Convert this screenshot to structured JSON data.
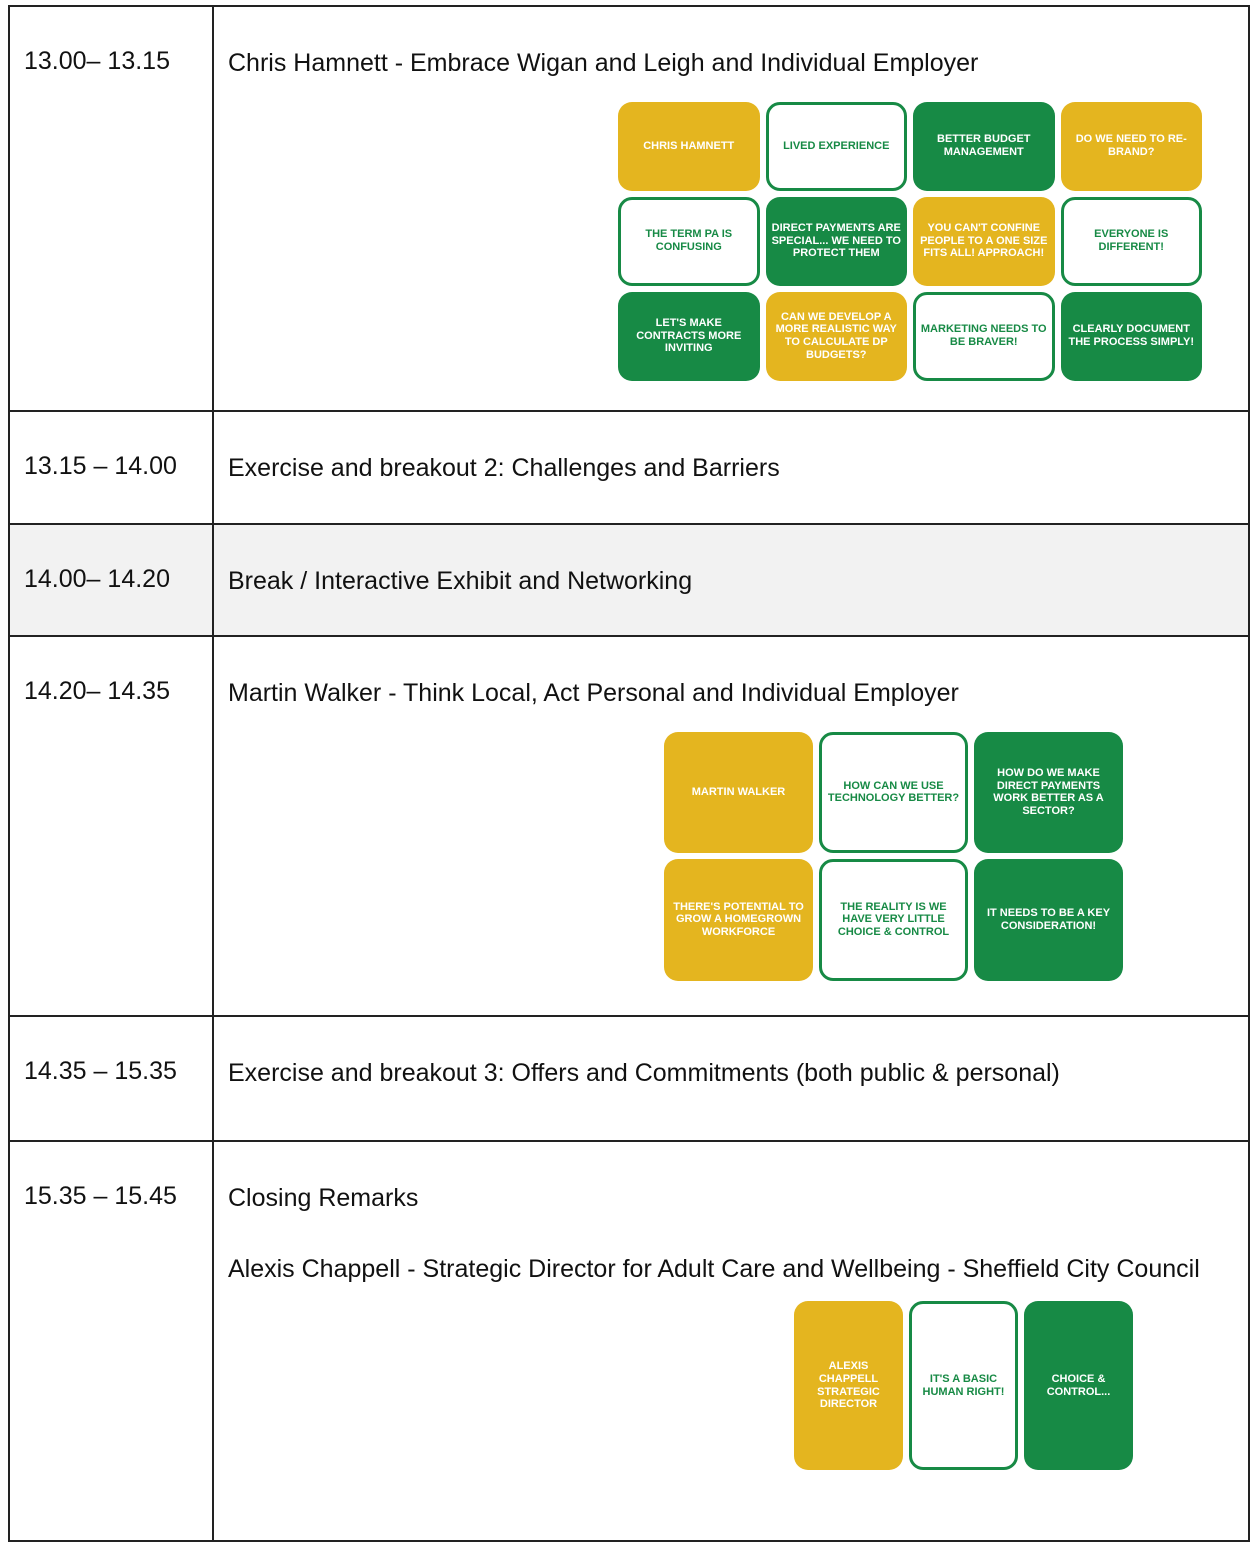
{
  "rows": [
    {
      "time": "13.00– 13.15",
      "paragraphs": [
        "Chris Hamnett - Embrace Wigan and Leigh and Individual Employer"
      ],
      "illustration": [
        "CHRIS HAMNETT",
        "LIVED EXPERIENCE",
        "BETTER BUDGET MANAGEMENT",
        "DO WE NEED TO RE-BRAND?",
        "THE TERM PA IS CONFUSING",
        "DIRECT PAYMENTS ARE SPECIAL... WE NEED TO PROTECT THEM",
        "YOU CAN'T CONFINE PEOPLE TO A ONE SIZE FITS ALL! APPROACH!",
        "EVERYONE IS DIFFERENT!",
        "LET'S MAKE CONTRACTS MORE INVITING",
        "CAN WE DEVELOP A MORE REALISTIC WAY TO CALCULATE DP BUDGETS?",
        "MARKETING NEEDS TO BE BRAVER!",
        "CLEARLY DOCUMENT THE PROCESS SIMPLY!"
      ]
    },
    {
      "time": "13.15 – 14.00",
      "paragraphs": [
        "Exercise and breakout 2: Challenges and Barriers"
      ]
    },
    {
      "time": "14.00– 14.20",
      "paragraphs": [
        "Break / Interactive Exhibit and Networking"
      ]
    },
    {
      "time": "14.20– 14.35",
      "paragraphs": [
        "Martin Walker - Think Local, Act Personal and Individual Employer"
      ],
      "illustration": [
        "MARTIN WALKER",
        "HOW CAN WE USE TECHNOLOGY BETTER?",
        "HOW DO WE MAKE DIRECT PAYMENTS WORK BETTER AS A SECTOR?",
        "THERE'S POTENTIAL TO GROW A HOMEGROWN WORKFORCE",
        "THE REALITY IS WE HAVE VERY LITTLE CHOICE & CONTROL",
        "IT NEEDS TO BE A KEY CONSIDERATION!"
      ]
    },
    {
      "time": "14.35 – 15.35",
      "paragraphs": [
        "Exercise and breakout 3: Offers and Commitments (both public & personal)"
      ]
    },
    {
      "time": "15.35 – 15.45",
      "paragraphs": [
        "Closing Remarks",
        "Alexis Chappell - Strategic Director for Adult Care and Wellbeing - Sheffield City Council"
      ],
      "illustration": [
        "ALEXIS CHAPPELL STRATEGIC DIRECTOR",
        "IT'S A BASIC HUMAN RIGHT!",
        "CHOICE & CONTROL..."
      ]
    }
  ]
}
